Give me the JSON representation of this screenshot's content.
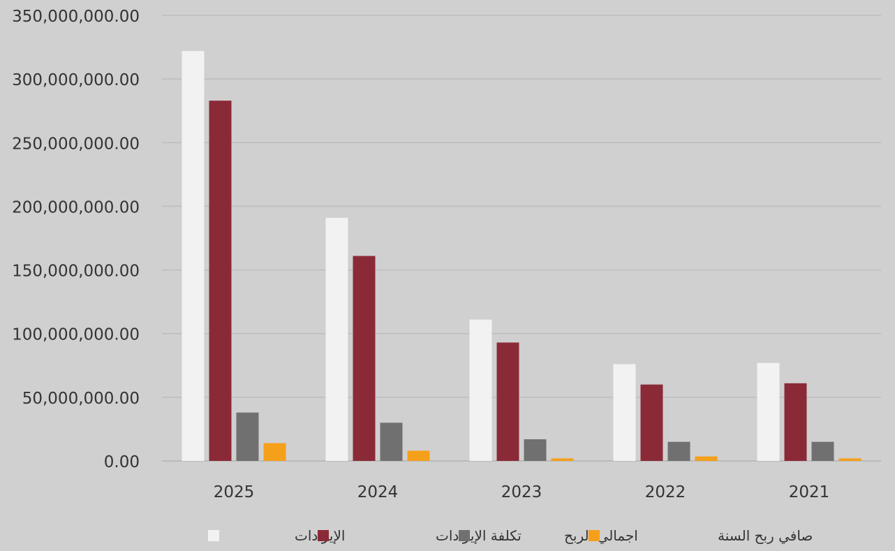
{
  "chart_data": {
    "type": "bar",
    "title": "",
    "xlabel": "",
    "ylabel": "",
    "categories": [
      "2025",
      "2024",
      "2023",
      "2022",
      "2021"
    ],
    "ylim": [
      0,
      350000000
    ],
    "yticks": [
      0,
      50000000,
      100000000,
      150000000,
      200000000,
      250000000,
      300000000,
      350000000
    ],
    "ytick_labels": [
      "0.00",
      "50,000,000.00",
      "100,000,000.00",
      "150,000,000.00",
      "200,000,000.00",
      "250,000,000.00",
      "300,000,000.00",
      "350,000,000.00"
    ],
    "grid": true,
    "legend_position": "bottom",
    "series": [
      {
        "name": "الإيرادات",
        "color": "#f2f2f2",
        "values": [
          322000000,
          191000000,
          111000000,
          76000000,
          77000000
        ]
      },
      {
        "name": "تكلفة الإيرادات",
        "color": "#8b2a37",
        "values": [
          283000000,
          161000000,
          93000000,
          60000000,
          61000000
        ]
      },
      {
        "name": "اجمالي الربح",
        "color": "#707070",
        "values": [
          38000000,
          30000000,
          17000000,
          15000000,
          15000000
        ]
      },
      {
        "name": "صافي ربح السنة",
        "color": "#f5a01a",
        "values": [
          14000000,
          8000000,
          2000000,
          3500000,
          2000000
        ]
      }
    ]
  }
}
